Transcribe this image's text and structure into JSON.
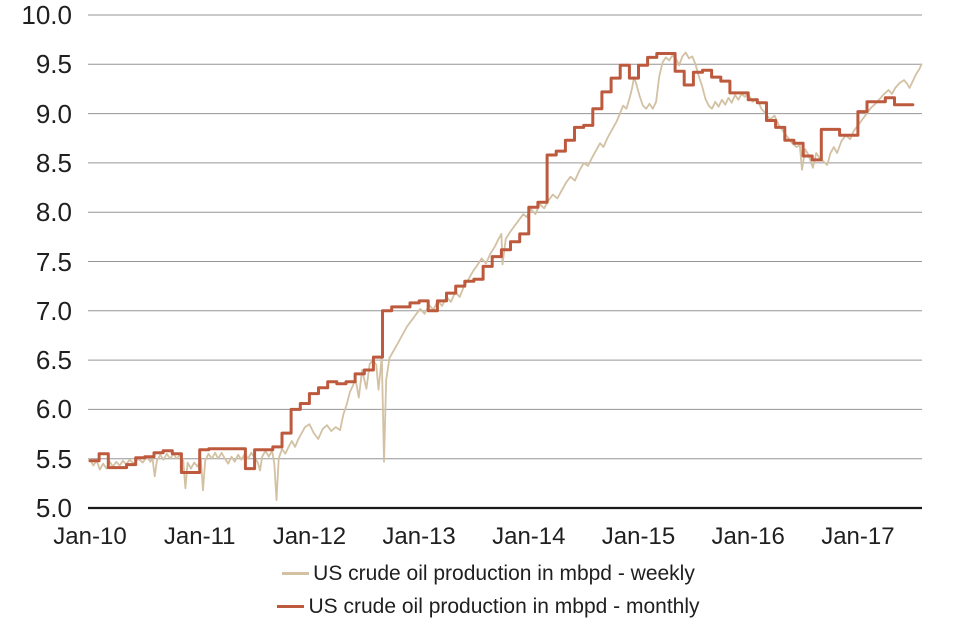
{
  "chart_data": {
    "type": "line",
    "title": "",
    "xlabel": "",
    "ylabel": "",
    "grid": "horizontal",
    "legend_position": "bottom",
    "colors": {
      "background": "#ffffff",
      "grid": "#969696",
      "axis": "#1a1a1a",
      "text": "#1f1f1f"
    },
    "x_axis": {
      "tick_labels": [
        "Jan-10",
        "Jan-11",
        "Jan-12",
        "Jan-13",
        "Jan-14",
        "Jan-15",
        "Jan-16",
        "Jan-17"
      ],
      "tick_positions_years": [
        0,
        1,
        2,
        3,
        4,
        5,
        6,
        7
      ],
      "range_years_from_jan2010": [
        0,
        7.62
      ]
    },
    "y_axis": {
      "min": 5.0,
      "max": 10.0,
      "step": 0.5,
      "tick_labels": [
        "5.0",
        "5.5",
        "6.0",
        "6.5",
        "7.0",
        "7.5",
        "8.0",
        "8.5",
        "9.0",
        "9.5",
        "10.0"
      ],
      "unit": "mbpd"
    },
    "series": [
      {
        "name": "US crude oil production in mbpd - weekly",
        "color": "#d2c1a3",
        "line_width": 1.8,
        "interpolation": "linear",
        "points_t_years_value": [
          [
            0.0,
            5.5
          ],
          [
            0.03,
            5.43
          ],
          [
            0.06,
            5.48
          ],
          [
            0.09,
            5.39
          ],
          [
            0.12,
            5.45
          ],
          [
            0.15,
            5.4
          ],
          [
            0.18,
            5.47
          ],
          [
            0.21,
            5.42
          ],
          [
            0.24,
            5.47
          ],
          [
            0.27,
            5.43
          ],
          [
            0.3,
            5.48
          ],
          [
            0.33,
            5.44
          ],
          [
            0.36,
            5.49
          ],
          [
            0.4,
            5.45
          ],
          [
            0.44,
            5.5
          ],
          [
            0.48,
            5.46
          ],
          [
            0.52,
            5.52
          ],
          [
            0.55,
            5.47
          ],
          [
            0.57,
            5.5
          ],
          [
            0.59,
            5.32
          ],
          [
            0.61,
            5.48
          ],
          [
            0.64,
            5.54
          ],
          [
            0.67,
            5.49
          ],
          [
            0.7,
            5.55
          ],
          [
            0.73,
            5.5
          ],
          [
            0.76,
            5.55
          ],
          [
            0.79,
            5.5
          ],
          [
            0.82,
            5.54
          ],
          [
            0.85,
            5.48
          ],
          [
            0.87,
            5.2
          ],
          [
            0.89,
            5.46
          ],
          [
            0.92,
            5.4
          ],
          [
            0.95,
            5.46
          ],
          [
            0.98,
            5.42
          ],
          [
            1.01,
            5.5
          ],
          [
            1.03,
            5.18
          ],
          [
            1.05,
            5.48
          ],
          [
            1.08,
            5.55
          ],
          [
            1.11,
            5.5
          ],
          [
            1.14,
            5.56
          ],
          [
            1.17,
            5.5
          ],
          [
            1.2,
            5.56
          ],
          [
            1.23,
            5.5
          ],
          [
            1.26,
            5.45
          ],
          [
            1.29,
            5.52
          ],
          [
            1.32,
            5.47
          ],
          [
            1.35,
            5.54
          ],
          [
            1.38,
            5.49
          ],
          [
            1.41,
            5.55
          ],
          [
            1.44,
            5.5
          ],
          [
            1.47,
            5.56
          ],
          [
            1.5,
            5.51
          ],
          [
            1.53,
            5.46
          ],
          [
            1.55,
            5.38
          ],
          [
            1.57,
            5.52
          ],
          [
            1.6,
            5.58
          ],
          [
            1.63,
            5.52
          ],
          [
            1.66,
            5.58
          ],
          [
            1.68,
            5.45
          ],
          [
            1.7,
            5.08
          ],
          [
            1.72,
            5.5
          ],
          [
            1.75,
            5.6
          ],
          [
            1.78,
            5.55
          ],
          [
            1.81,
            5.62
          ],
          [
            1.84,
            5.68
          ],
          [
            1.87,
            5.62
          ],
          [
            1.9,
            5.7
          ],
          [
            1.93,
            5.76
          ],
          [
            1.96,
            5.82
          ],
          [
            2.0,
            5.85
          ],
          [
            2.04,
            5.76
          ],
          [
            2.08,
            5.7
          ],
          [
            2.12,
            5.8
          ],
          [
            2.16,
            5.84
          ],
          [
            2.2,
            5.78
          ],
          [
            2.24,
            5.82
          ],
          [
            2.28,
            5.79
          ],
          [
            2.31,
            5.95
          ],
          [
            2.34,
            6.05
          ],
          [
            2.37,
            6.18
          ],
          [
            2.4,
            6.25
          ],
          [
            2.42,
            6.31
          ],
          [
            2.45,
            6.12
          ],
          [
            2.48,
            6.4
          ],
          [
            2.52,
            6.21
          ],
          [
            2.55,
            6.46
          ],
          [
            2.58,
            6.5
          ],
          [
            2.61,
            6.45
          ],
          [
            2.63,
            6.2
          ],
          [
            2.66,
            6.53
          ],
          [
            2.68,
            5.47
          ],
          [
            2.7,
            6.3
          ],
          [
            2.73,
            6.52
          ],
          [
            2.77,
            6.6
          ],
          [
            2.81,
            6.68
          ],
          [
            2.85,
            6.76
          ],
          [
            2.89,
            6.84
          ],
          [
            2.93,
            6.9
          ],
          [
            2.97,
            6.96
          ],
          [
            3.01,
            7.02
          ],
          [
            3.05,
            6.97
          ],
          [
            3.09,
            7.06
          ],
          [
            3.13,
            7.01
          ],
          [
            3.17,
            7.1
          ],
          [
            3.21,
            7.05
          ],
          [
            3.25,
            7.14
          ],
          [
            3.29,
            7.09
          ],
          [
            3.33,
            7.19
          ],
          [
            3.37,
            7.14
          ],
          [
            3.41,
            7.25
          ],
          [
            3.45,
            7.32
          ],
          [
            3.49,
            7.4
          ],
          [
            3.53,
            7.46
          ],
          [
            3.57,
            7.53
          ],
          [
            3.61,
            7.48
          ],
          [
            3.65,
            7.58
          ],
          [
            3.69,
            7.65
          ],
          [
            3.72,
            7.72
          ],
          [
            3.75,
            7.78
          ],
          [
            3.76,
            7.47
          ],
          [
            3.79,
            7.73
          ],
          [
            3.83,
            7.8
          ],
          [
            3.87,
            7.86
          ],
          [
            3.91,
            7.92
          ],
          [
            3.95,
            7.98
          ],
          [
            3.98,
            7.95
          ],
          [
            4.02,
            8.03
          ],
          [
            4.06,
            7.98
          ],
          [
            4.1,
            8.08
          ],
          [
            4.14,
            8.04
          ],
          [
            4.18,
            8.12
          ],
          [
            4.22,
            8.18
          ],
          [
            4.26,
            8.14
          ],
          [
            4.3,
            8.22
          ],
          [
            4.34,
            8.3
          ],
          [
            4.38,
            8.36
          ],
          [
            4.42,
            8.32
          ],
          [
            4.46,
            8.42
          ],
          [
            4.5,
            8.5
          ],
          [
            4.54,
            8.47
          ],
          [
            4.58,
            8.56
          ],
          [
            4.62,
            8.64
          ],
          [
            4.65,
            8.7
          ],
          [
            4.68,
            8.66
          ],
          [
            4.72,
            8.76
          ],
          [
            4.76,
            8.84
          ],
          [
            4.8,
            8.92
          ],
          [
            4.83,
            9.0
          ],
          [
            4.86,
            9.08
          ],
          [
            4.89,
            9.05
          ],
          [
            4.92,
            9.16
          ],
          [
            4.94,
            9.25
          ],
          [
            4.96,
            9.37
          ],
          [
            4.98,
            9.3
          ],
          [
            5.01,
            9.18
          ],
          [
            5.04,
            9.08
          ],
          [
            5.07,
            9.05
          ],
          [
            5.1,
            9.1
          ],
          [
            5.13,
            9.05
          ],
          [
            5.16,
            9.12
          ],
          [
            5.19,
            9.38
          ],
          [
            5.22,
            9.52
          ],
          [
            5.25,
            9.57
          ],
          [
            5.28,
            9.54
          ],
          [
            5.31,
            9.59
          ],
          [
            5.34,
            9.56
          ],
          [
            5.37,
            9.49
          ],
          [
            5.4,
            9.58
          ],
          [
            5.43,
            9.62
          ],
          [
            5.46,
            9.56
          ],
          [
            5.49,
            9.58
          ],
          [
            5.52,
            9.5
          ],
          [
            5.55,
            9.38
          ],
          [
            5.58,
            9.28
          ],
          [
            5.61,
            9.15
          ],
          [
            5.64,
            9.08
          ],
          [
            5.67,
            9.05
          ],
          [
            5.7,
            9.12
          ],
          [
            5.73,
            9.07
          ],
          [
            5.76,
            9.14
          ],
          [
            5.79,
            9.09
          ],
          [
            5.82,
            9.16
          ],
          [
            5.85,
            9.11
          ],
          [
            5.88,
            9.19
          ],
          [
            5.91,
            9.14
          ],
          [
            5.94,
            9.2
          ],
          [
            5.97,
            9.17
          ],
          [
            6.0,
            9.2
          ],
          [
            6.04,
            9.12
          ],
          [
            6.08,
            9.15
          ],
          [
            6.12,
            9.05
          ],
          [
            6.16,
            9.0
          ],
          [
            6.2,
            8.94
          ],
          [
            6.24,
            8.98
          ],
          [
            6.28,
            8.88
          ],
          [
            6.32,
            8.82
          ],
          [
            6.36,
            8.76
          ],
          [
            6.4,
            8.7
          ],
          [
            6.44,
            8.66
          ],
          [
            6.47,
            8.68
          ],
          [
            6.49,
            8.43
          ],
          [
            6.52,
            8.64
          ],
          [
            6.55,
            8.58
          ],
          [
            6.59,
            8.45
          ],
          [
            6.62,
            8.6
          ],
          [
            6.65,
            8.55
          ],
          [
            6.68,
            8.52
          ],
          [
            6.72,
            8.48
          ],
          [
            6.75,
            8.6
          ],
          [
            6.78,
            8.66
          ],
          [
            6.81,
            8.6
          ],
          [
            6.85,
            8.72
          ],
          [
            6.89,
            8.78
          ],
          [
            6.93,
            8.74
          ],
          [
            6.96,
            8.82
          ],
          [
            7.0,
            8.88
          ],
          [
            7.04,
            8.94
          ],
          [
            7.08,
            9.0
          ],
          [
            7.12,
            9.06
          ],
          [
            7.16,
            9.1
          ],
          [
            7.2,
            9.15
          ],
          [
            7.24,
            9.2
          ],
          [
            7.28,
            9.24
          ],
          [
            7.31,
            9.2
          ],
          [
            7.34,
            9.26
          ],
          [
            7.38,
            9.31
          ],
          [
            7.42,
            9.34
          ],
          [
            7.45,
            9.3
          ],
          [
            7.47,
            9.26
          ],
          [
            7.5,
            9.33
          ],
          [
            7.53,
            9.4
          ],
          [
            7.56,
            9.45
          ],
          [
            7.58,
            9.5
          ]
        ]
      },
      {
        "name": "US crude oil production in mbpd - monthly",
        "color": "#bd5a3e",
        "line_width": 3,
        "interpolation": "step",
        "start_month": "Jan-2010",
        "monthly_values": [
          5.48,
          5.55,
          5.41,
          5.41,
          5.44,
          5.51,
          5.52,
          5.56,
          5.58,
          5.55,
          5.36,
          5.36,
          5.59,
          5.6,
          5.6,
          5.6,
          5.6,
          5.4,
          5.59,
          5.59,
          5.62,
          5.76,
          6.0,
          6.06,
          6.16,
          6.22,
          6.28,
          6.26,
          6.28,
          6.36,
          6.4,
          6.53,
          7.0,
          7.04,
          7.04,
          7.08,
          7.1,
          7.0,
          7.1,
          7.18,
          7.25,
          7.3,
          7.32,
          7.45,
          7.55,
          7.62,
          7.7,
          7.78,
          8.05,
          8.1,
          8.58,
          8.62,
          8.73,
          8.86,
          8.88,
          9.05,
          9.22,
          9.36,
          9.49,
          9.36,
          9.49,
          9.57,
          9.61,
          9.61,
          9.43,
          9.29,
          9.42,
          9.44,
          9.37,
          9.33,
          9.21,
          9.21,
          9.14,
          9.11,
          8.93,
          8.86,
          8.73,
          8.7,
          8.57,
          8.53,
          8.84,
          8.84,
          8.78,
          8.78,
          9.02,
          9.12,
          9.12,
          9.16,
          9.09,
          9.09
        ]
      }
    ]
  }
}
